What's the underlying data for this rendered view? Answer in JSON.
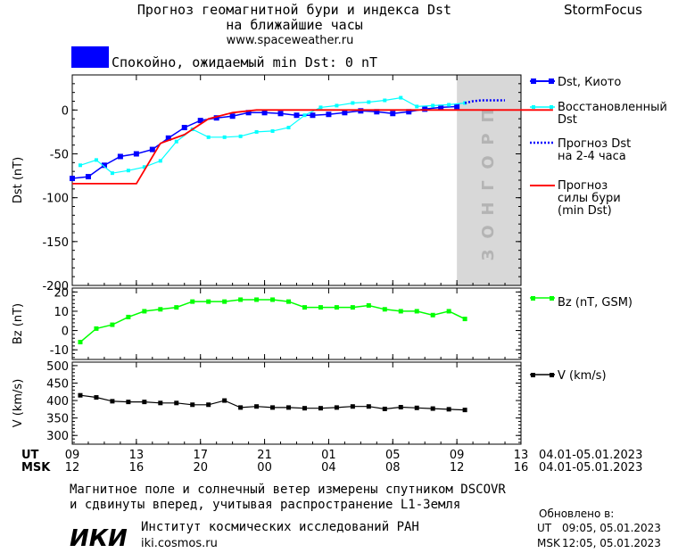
{
  "header": {
    "title_line1": "Прогноз геомагнитной бури и индекса Dst",
    "title_line2": "на ближайшие часы",
    "url": "www.spaceweather.ru",
    "brand": "StormFocus"
  },
  "status": {
    "text": "Спокойно, ожидаемый min Dst: 0 nT",
    "color": "#0000ff"
  },
  "forecast_band_text": "ПРОГНОЗ",
  "colors": {
    "dst_kyoto": "#0000ff",
    "dst_restored": "#00ffff",
    "dst_forecast": "#0000ff",
    "storm_forecast": "#ff0000",
    "bz": "#00ff00",
    "v": "#000000",
    "forecast_band": "#d8d8d8"
  },
  "chart_data": [
    {
      "type": "line",
      "panel": "dst",
      "ylabel": "Dst (nT)",
      "ylim": [
        -200,
        40
      ],
      "yticks": [
        0,
        -50,
        -100,
        -150,
        -200
      ],
      "x_hours_since_start": true,
      "series": [
        {
          "name": "Dst, Киото",
          "x": [
            0,
            1,
            2,
            3,
            4,
            5,
            6,
            7,
            8,
            9,
            10,
            11,
            12,
            13,
            14,
            15,
            16,
            17,
            18,
            19,
            20,
            21,
            22,
            23,
            24
          ],
          "values": [
            -78,
            -76,
            -63,
            -53,
            -50,
            -45,
            -32,
            -20,
            -12,
            -9,
            -7,
            -3,
            -3,
            -4,
            -6,
            -6,
            -5,
            -3,
            -1,
            -2,
            -4,
            -2,
            1,
            3,
            4
          ]
        },
        {
          "name": "Восстановленный Dst",
          "x": [
            0.5,
            1.5,
            2.5,
            3.5,
            4.5,
            5.5,
            6.5,
            7.5,
            8.5,
            9.5,
            10.5,
            11.5,
            12.5,
            13.5,
            14.5,
            15.5,
            16.5,
            17.5,
            18.5,
            19.5,
            20.5,
            21.5,
            22.5,
            23.5,
            24.5
          ],
          "values": [
            -63,
            -57,
            -72,
            -69,
            -65,
            -58,
            -36,
            -22,
            -31,
            -31,
            -30,
            -25,
            -24,
            -20,
            -6,
            3,
            5,
            8,
            9,
            11,
            14,
            4,
            5,
            6,
            8
          ]
        },
        {
          "name": "Прогноз Dst на 2-4 часа",
          "x": [
            24.5,
            25,
            25.5,
            26,
            26.5,
            27
          ],
          "values": [
            8,
            10,
            11,
            11,
            11,
            11
          ]
        },
        {
          "name": "Прогноз силы бури (min Dst)",
          "x": [
            0,
            4,
            5.5,
            7,
            8.5,
            10,
            11.5,
            14,
            30
          ],
          "values": [
            -84,
            -84,
            -38,
            -28,
            -10,
            -3,
            0,
            0,
            0
          ]
        }
      ]
    },
    {
      "type": "line",
      "panel": "bz",
      "ylabel": "Bz (nT)",
      "ylim": [
        -15,
        22
      ],
      "yticks": [
        20,
        10,
        0,
        -10
      ],
      "series": [
        {
          "name": "Bz (nT, GSM)",
          "x": [
            0.5,
            1.5,
            2.5,
            3.5,
            4.5,
            5.5,
            6.5,
            7.5,
            8.5,
            9.5,
            10.5,
            11.5,
            12.5,
            13.5,
            14.5,
            15.5,
            16.5,
            17.5,
            18.5,
            19.5,
            20.5,
            21.5,
            22.5,
            23.5,
            24.5
          ],
          "values": [
            -6,
            1,
            3,
            7,
            10,
            11,
            12,
            15,
            15,
            15,
            16,
            16,
            16,
            15,
            12,
            12,
            12,
            12,
            13,
            11,
            10,
            10,
            8,
            10,
            6
          ]
        }
      ]
    },
    {
      "type": "line",
      "panel": "v",
      "ylabel": "V (km/s)",
      "ylim": [
        275,
        510
      ],
      "yticks": [
        500,
        450,
        400,
        350,
        300
      ],
      "series": [
        {
          "name": "V (km/s)",
          "x": [
            0.5,
            1.5,
            2.5,
            3.5,
            4.5,
            5.5,
            6.5,
            7.5,
            8.5,
            9.5,
            10.5,
            11.5,
            12.5,
            13.5,
            14.5,
            15.5,
            16.5,
            17.5,
            18.5,
            19.5,
            20.5,
            21.5,
            22.5,
            23.5,
            24.5
          ],
          "values": [
            415,
            409,
            398,
            396,
            396,
            393,
            393,
            388,
            388,
            400,
            380,
            383,
            380,
            380,
            378,
            378,
            380,
            383,
            383,
            376,
            381,
            379,
            377,
            375,
            373
          ]
        }
      ]
    }
  ],
  "x_axis": {
    "ut_label": "UT",
    "msk_label": "MSK",
    "ut_ticks": [
      "09",
      "13",
      "17",
      "21",
      "01",
      "05",
      "09",
      "13"
    ],
    "msk_ticks": [
      "12",
      "16",
      "20",
      "00",
      "04",
      "08",
      "12",
      "16"
    ],
    "tick_hours": [
      0,
      4,
      8,
      12,
      16,
      20,
      24,
      28
    ],
    "range_ut": "04.01-05.01.2023",
    "range_msk": "04.01-05.01.2023"
  },
  "footer": {
    "note_line1": "Магнитное поле и солнечный ветер измерены спутником DSCOVR",
    "note_line2": "и сдвинуты вперед, учитывая распространение L1-Земля",
    "logo": "ИКИ",
    "institute": "Институт космических исследований РАН",
    "site": "iki.cosmos.ru",
    "updated_label": "Обновлено в:",
    "updated_ut_label": "UT",
    "updated_ut": "09:05, 05.01.2023",
    "updated_msk_label": "MSK",
    "updated_msk": "12:05, 05.01.2023"
  }
}
